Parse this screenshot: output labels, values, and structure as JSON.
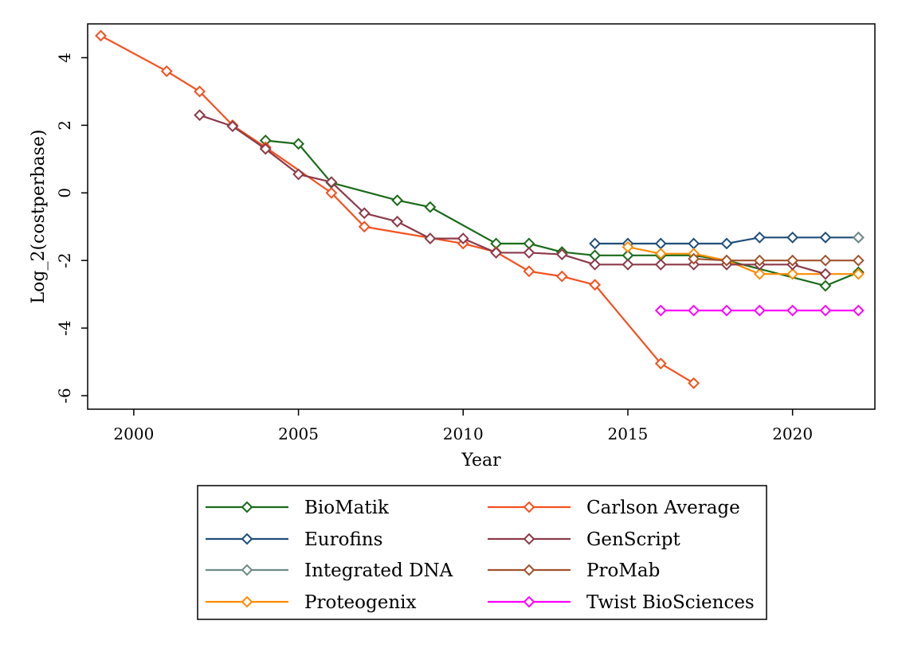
{
  "chart_data": {
    "type": "line",
    "title": "",
    "xlabel": "Year",
    "ylabel": "Log_2(costperbase)",
    "xlim": [
      1998.6,
      2022.5
    ],
    "ylim": [
      -6.4,
      5.0
    ],
    "xticks": [
      2000,
      2005,
      2010,
      2015,
      2020
    ],
    "yticks": [
      -6,
      -4,
      -2,
      0,
      2,
      4
    ],
    "grid": false,
    "legend_position": "bottom",
    "legend_columns": 2,
    "series": [
      {
        "name": "BioMatik",
        "color": "#1a6b1a",
        "points": [
          [
            2004,
            1.55
          ],
          [
            2005,
            1.45
          ],
          [
            2006,
            0.3
          ],
          [
            2008,
            -0.22
          ],
          [
            2009,
            -0.42
          ],
          [
            2011,
            -1.5
          ],
          [
            2012,
            -1.5
          ],
          [
            2013,
            -1.75
          ],
          [
            2014,
            -1.85
          ],
          [
            2015,
            -1.85
          ],
          [
            2016,
            -1.85
          ],
          [
            2017,
            -1.85
          ],
          [
            2018,
            -2.0
          ],
          [
            2021,
            -2.75
          ],
          [
            2022,
            -2.35
          ]
        ]
      },
      {
        "name": "Eurofins",
        "color": "#1f4e79",
        "points": [
          [
            2014,
            -1.5
          ],
          [
            2015,
            -1.5
          ],
          [
            2016,
            -1.5
          ],
          [
            2017,
            -1.5
          ],
          [
            2018,
            -1.5
          ],
          [
            2019,
            -1.32
          ],
          [
            2020,
            -1.32
          ],
          [
            2021,
            -1.32
          ],
          [
            2022,
            -1.32
          ]
        ]
      },
      {
        "name": "Integrated DNA",
        "color": "#6e8b87",
        "points": [
          [
            2022,
            -1.32
          ]
        ]
      },
      {
        "name": "Proteogenix",
        "color": "#ff8c00",
        "points": [
          [
            2015,
            -1.6
          ],
          [
            2016,
            -1.8
          ],
          [
            2017,
            -1.8
          ],
          [
            2018,
            -2.0
          ],
          [
            2019,
            -2.4
          ],
          [
            2020,
            -2.4
          ],
          [
            2021,
            -2.4
          ],
          [
            2022,
            -2.4
          ]
        ]
      },
      {
        "name": "Carlson Average",
        "color": "#f4511e",
        "points": [
          [
            1999,
            4.65
          ],
          [
            2001,
            3.6
          ],
          [
            2002,
            3.0
          ],
          [
            2003,
            2.0
          ],
          [
            2004,
            1.35
          ],
          [
            2006,
            0.0
          ],
          [
            2007,
            -1.0
          ],
          [
            2010,
            -1.5
          ],
          [
            2011,
            -1.75
          ],
          [
            2012,
            -2.32
          ],
          [
            2013,
            -2.47
          ],
          [
            2014,
            -2.72
          ],
          [
            2016,
            -5.05
          ],
          [
            2017,
            -5.63
          ]
        ]
      },
      {
        "name": "GenScript",
        "color": "#8b3a4a",
        "points": [
          [
            2002,
            2.3
          ],
          [
            2003,
            1.97
          ],
          [
            2004,
            1.3
          ],
          [
            2005,
            0.55
          ],
          [
            2006,
            0.32
          ],
          [
            2007,
            -0.6
          ],
          [
            2008,
            -0.85
          ],
          [
            2009,
            -1.35
          ],
          [
            2010,
            -1.35
          ],
          [
            2011,
            -1.77
          ],
          [
            2012,
            -1.77
          ],
          [
            2013,
            -1.82
          ],
          [
            2014,
            -2.12
          ],
          [
            2015,
            -2.12
          ],
          [
            2016,
            -2.12
          ],
          [
            2017,
            -2.12
          ],
          [
            2018,
            -2.12
          ],
          [
            2019,
            -2.12
          ],
          [
            2020,
            -2.12
          ],
          [
            2021,
            -2.4
          ]
        ]
      },
      {
        "name": "ProMab",
        "color": "#a0522d",
        "points": [
          [
            2017,
            -1.95
          ],
          [
            2018,
            -2.0
          ],
          [
            2019,
            -2.0
          ],
          [
            2020,
            -2.0
          ],
          [
            2021,
            -2.0
          ],
          [
            2022,
            -2.0
          ]
        ]
      },
      {
        "name": "Twist BioSciences",
        "color": "#ff00ff",
        "points": [
          [
            2016,
            -3.48
          ],
          [
            2017,
            -3.48
          ],
          [
            2018,
            -3.48
          ],
          [
            2019,
            -3.48
          ],
          [
            2020,
            -3.48
          ],
          [
            2021,
            -3.48
          ],
          [
            2022,
            -3.48
          ]
        ]
      }
    ]
  }
}
